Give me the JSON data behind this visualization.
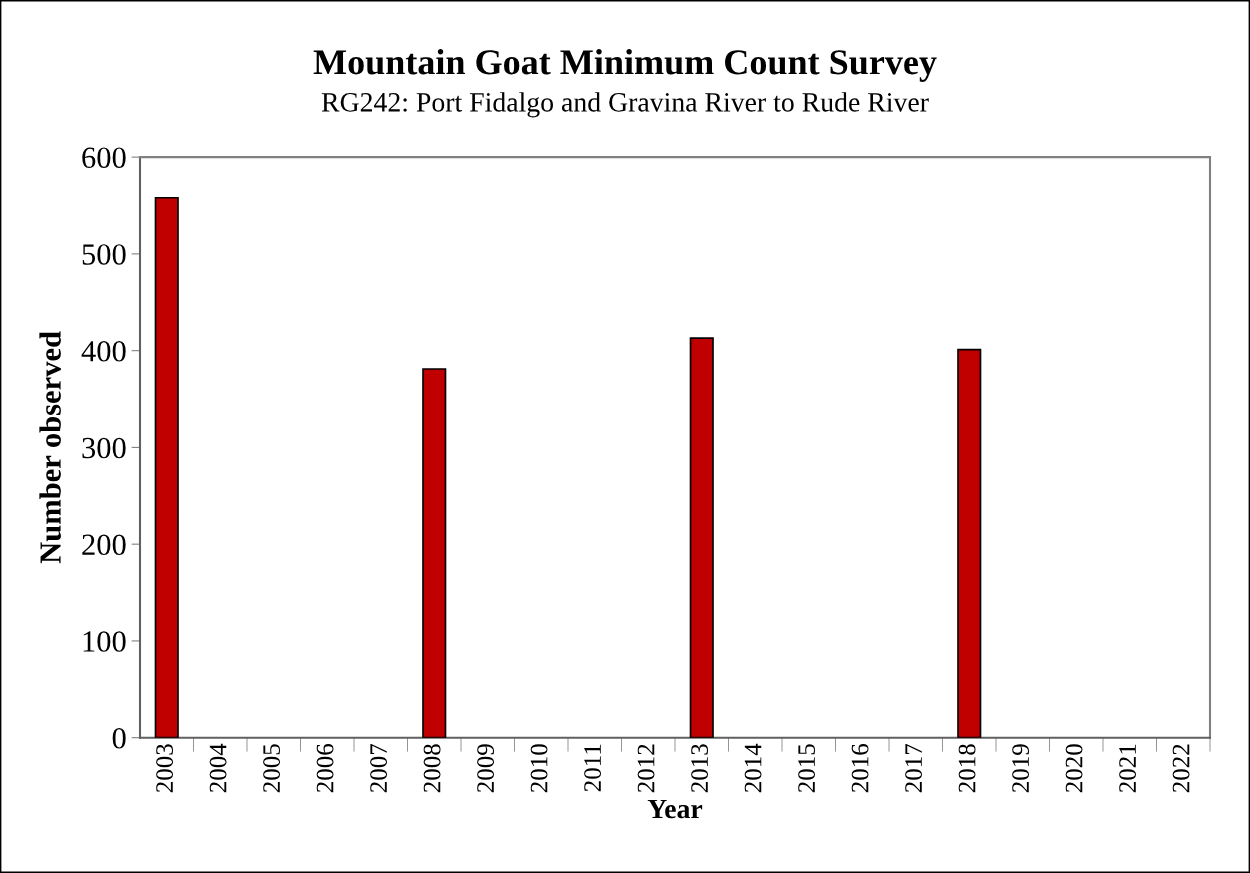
{
  "chart_data": {
    "type": "bar",
    "title": "Mountain Goat Minimum Count Survey",
    "subtitle": "RG242: Port Fidalgo and Gravina River to Rude River",
    "xlabel": "Year",
    "ylabel": "Number observed",
    "categories": [
      "2003",
      "2004",
      "2005",
      "2006",
      "2007",
      "2008",
      "2009",
      "2010",
      "2011",
      "2012",
      "2013",
      "2014",
      "2015",
      "2016",
      "2017",
      "2018",
      "2019",
      "2020",
      "2021",
      "2022"
    ],
    "values": [
      558,
      null,
      null,
      null,
      null,
      381,
      null,
      null,
      null,
      null,
      413,
      null,
      null,
      null,
      null,
      401,
      null,
      null,
      null,
      null
    ],
    "color": "#c00000",
    "ylim": [
      0,
      600
    ],
    "yticks": [
      0,
      100,
      200,
      300,
      400,
      500,
      600
    ],
    "grid": false,
    "legend": false
  }
}
